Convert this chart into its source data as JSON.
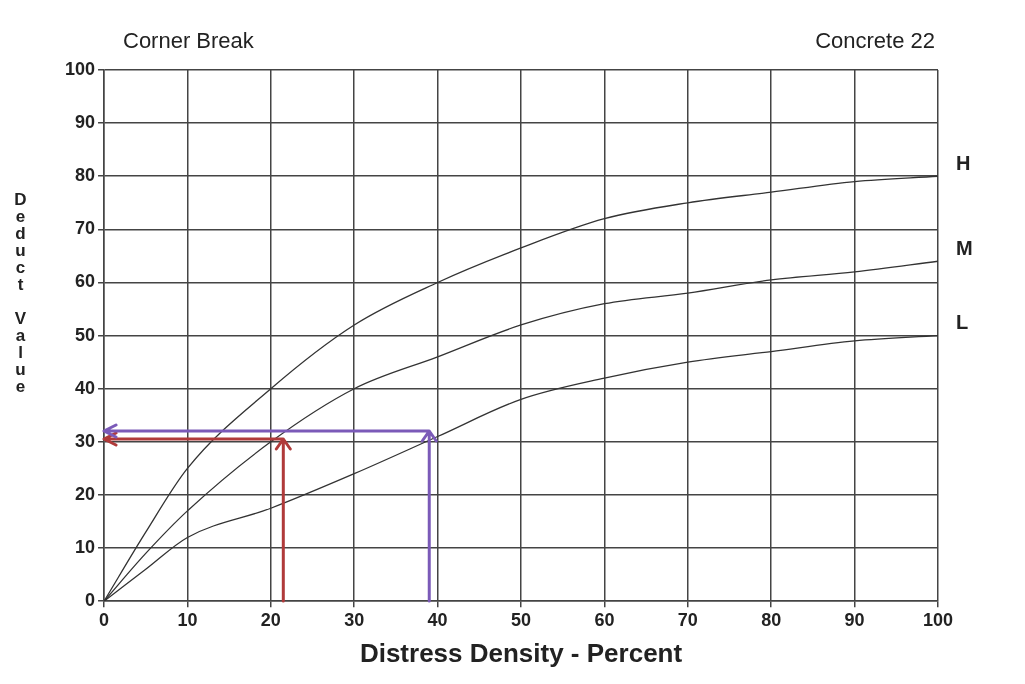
{
  "chart_data": {
    "type": "line",
    "title": "Corner Break",
    "subtitle": "Concrete 22",
    "xlabel": "Distress Density - Percent",
    "ylabel": "Deduct Value",
    "xlim": [
      0,
      100
    ],
    "xticks": [
      0,
      10,
      20,
      30,
      40,
      50,
      60,
      70,
      80,
      90,
      100
    ],
    "ylim": [
      0,
      100
    ],
    "yticks": [
      0,
      10,
      20,
      30,
      40,
      50,
      60,
      70,
      80,
      90,
      100
    ],
    "grid": true,
    "legend": false,
    "marker": "none",
    "line_style": "solid",
    "x": [
      0,
      5,
      10,
      20,
      30,
      40,
      50,
      60,
      70,
      80,
      90,
      100
    ],
    "series": [
      {
        "name": "H",
        "color": "#333333",
        "values": [
          0,
          13,
          25,
          40,
          52,
          60,
          66.5,
          72,
          75,
          77,
          79,
          80
        ]
      },
      {
        "name": "M",
        "color": "#333333",
        "values": [
          0,
          9,
          17,
          30,
          40,
          46,
          52,
          56,
          58,
          60.5,
          62,
          64
        ]
      },
      {
        "name": "L",
        "color": "#333333",
        "values": [
          0,
          6,
          12,
          17.5,
          24,
          31,
          38,
          42,
          45,
          47,
          49,
          50
        ]
      }
    ]
  }
}
